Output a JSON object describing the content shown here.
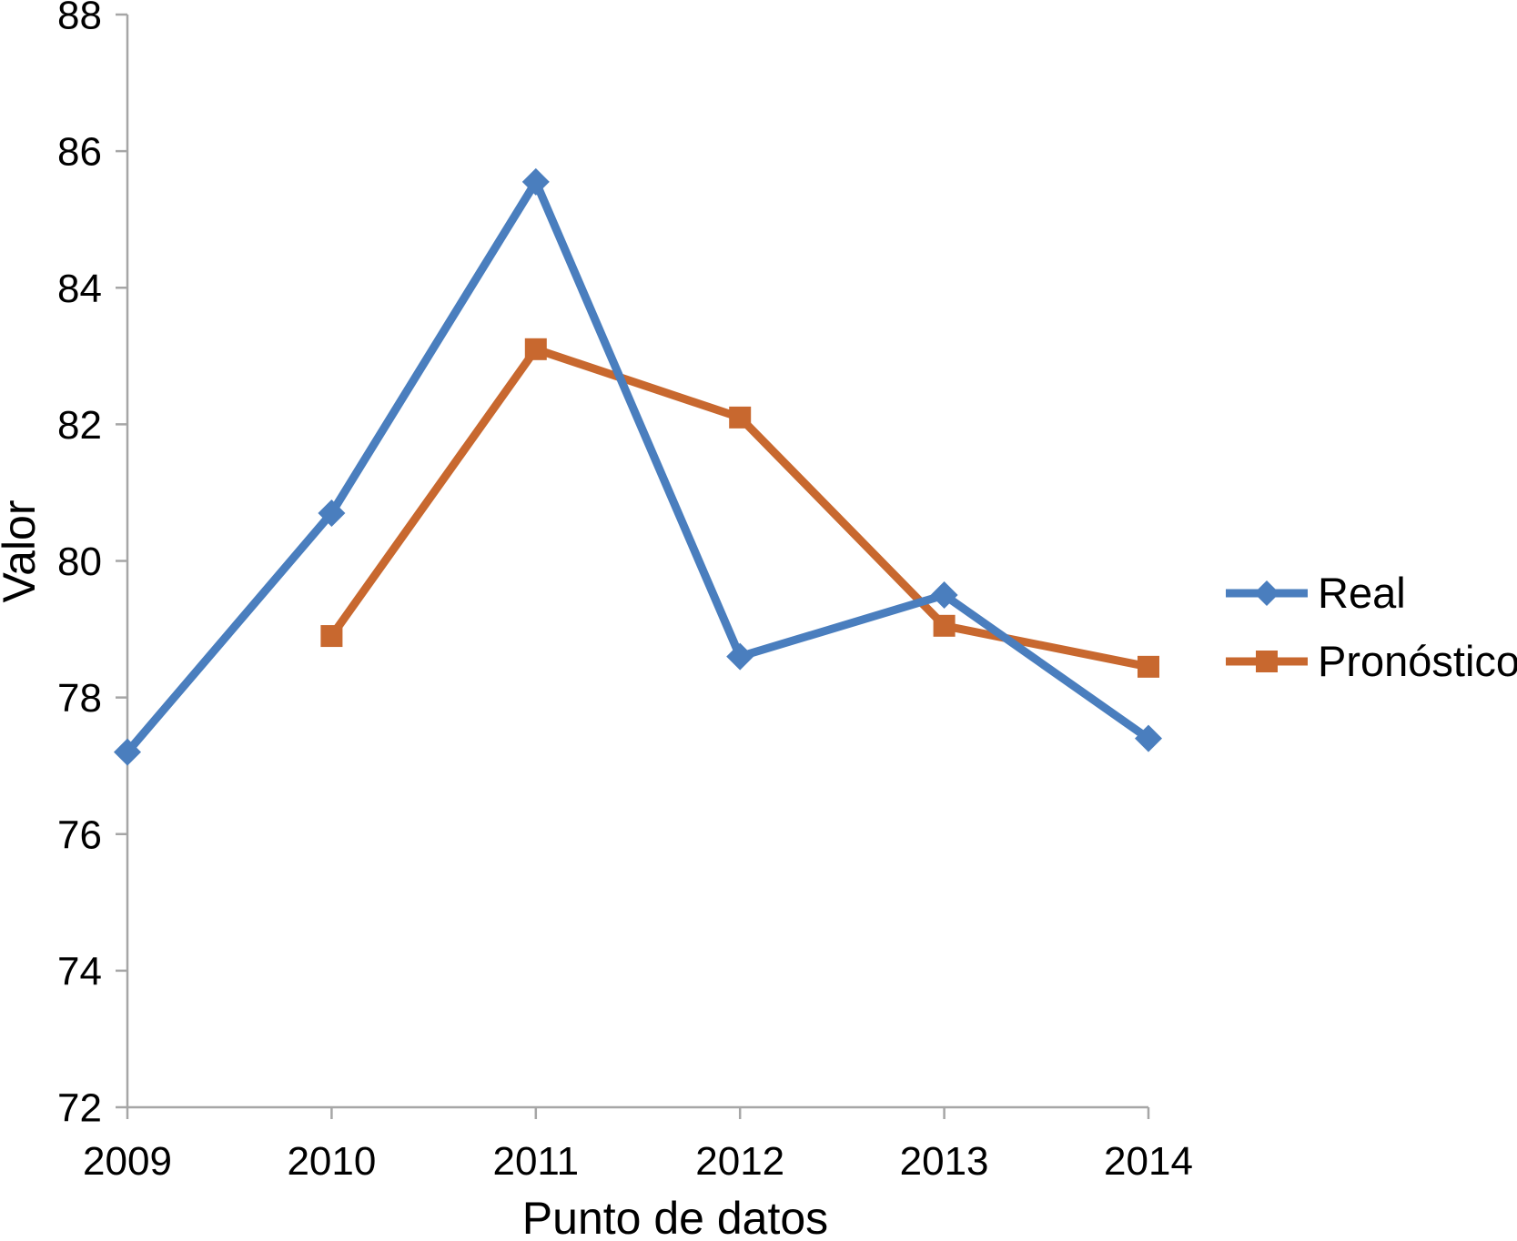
{
  "chart_data": {
    "type": "line",
    "title": "",
    "xlabel": "Punto de datos",
    "ylabel": "Valor",
    "categories": [
      "2009",
      "2010",
      "2011",
      "2012",
      "2013",
      "2014"
    ],
    "series": [
      {
        "name": "Real",
        "color": "#4A7EBE",
        "marker": "diamond",
        "values": [
          77.2,
          80.7,
          85.55,
          78.6,
          79.5,
          77.4
        ]
      },
      {
        "name": "Pronóstico",
        "color": "#C8682F",
        "marker": "square",
        "values": [
          null,
          78.9,
          83.1,
          82.1,
          79.05,
          78.45
        ]
      }
    ],
    "ylim": [
      72,
      88
    ],
    "ytick_step": 2,
    "yticks": [
      "72",
      "74",
      "76",
      "78",
      "80",
      "82",
      "84",
      "86",
      "88"
    ],
    "grid": false,
    "legend_position": "right-middle",
    "axis_color": "#A6A6A6",
    "text_color": "#000000",
    "background_color": "#FFFFFF"
  }
}
